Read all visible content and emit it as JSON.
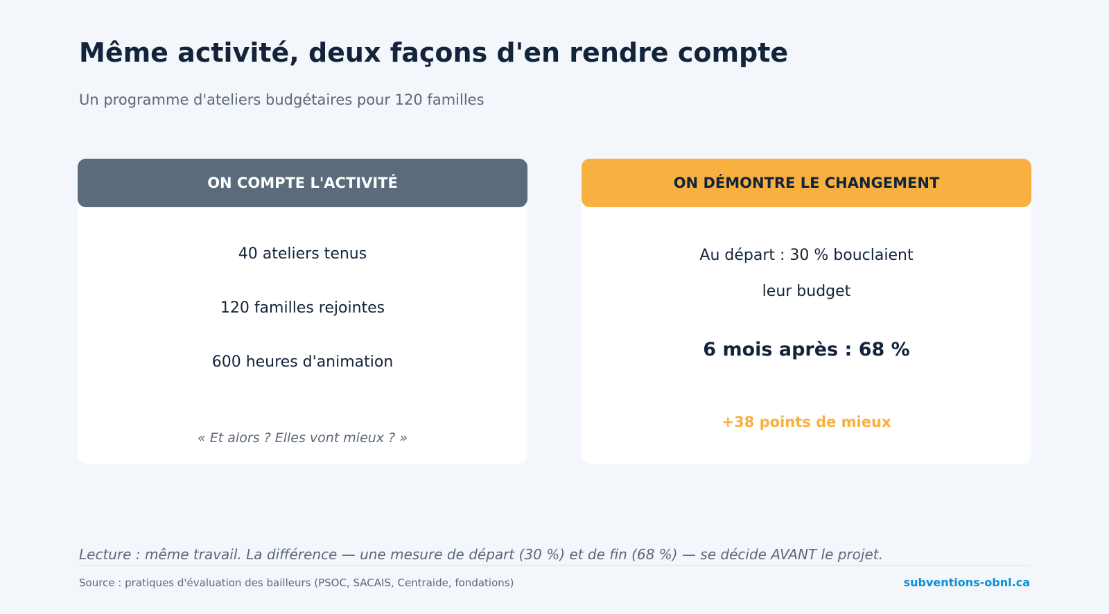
{
  "header": {
    "title": "Même activité, deux façons d'en rendre compte",
    "subtitle": "Un programme d'ateliers budgétaires pour 120 familles"
  },
  "cards": [
    {
      "heading": "ON COMPTE L'ACTIVITÉ",
      "items": [
        "40 ateliers tenus",
        "120 familles rejointes",
        "600 heures d'animation"
      ],
      "note": "« Et alors ? Elles vont mieux ? »"
    },
    {
      "heading": "ON DÉMONTRE LE CHANGEMENT",
      "items": [
        "Au départ : 30 % bouclaient leur budget"
      ],
      "result": "6 mois après : 68 %",
      "note": "+38 points de mieux"
    }
  ],
  "footer": {
    "reading": "Lecture : même travail. La différence — une mesure de départ (30 %) et de fin (68 %) — se décide AVANT le projet.",
    "source": "Source : pratiques d'évaluation des bailleurs (PSOC, SACAIS, Centraide, fondations)",
    "link": "subventions-obnl.ca"
  }
}
